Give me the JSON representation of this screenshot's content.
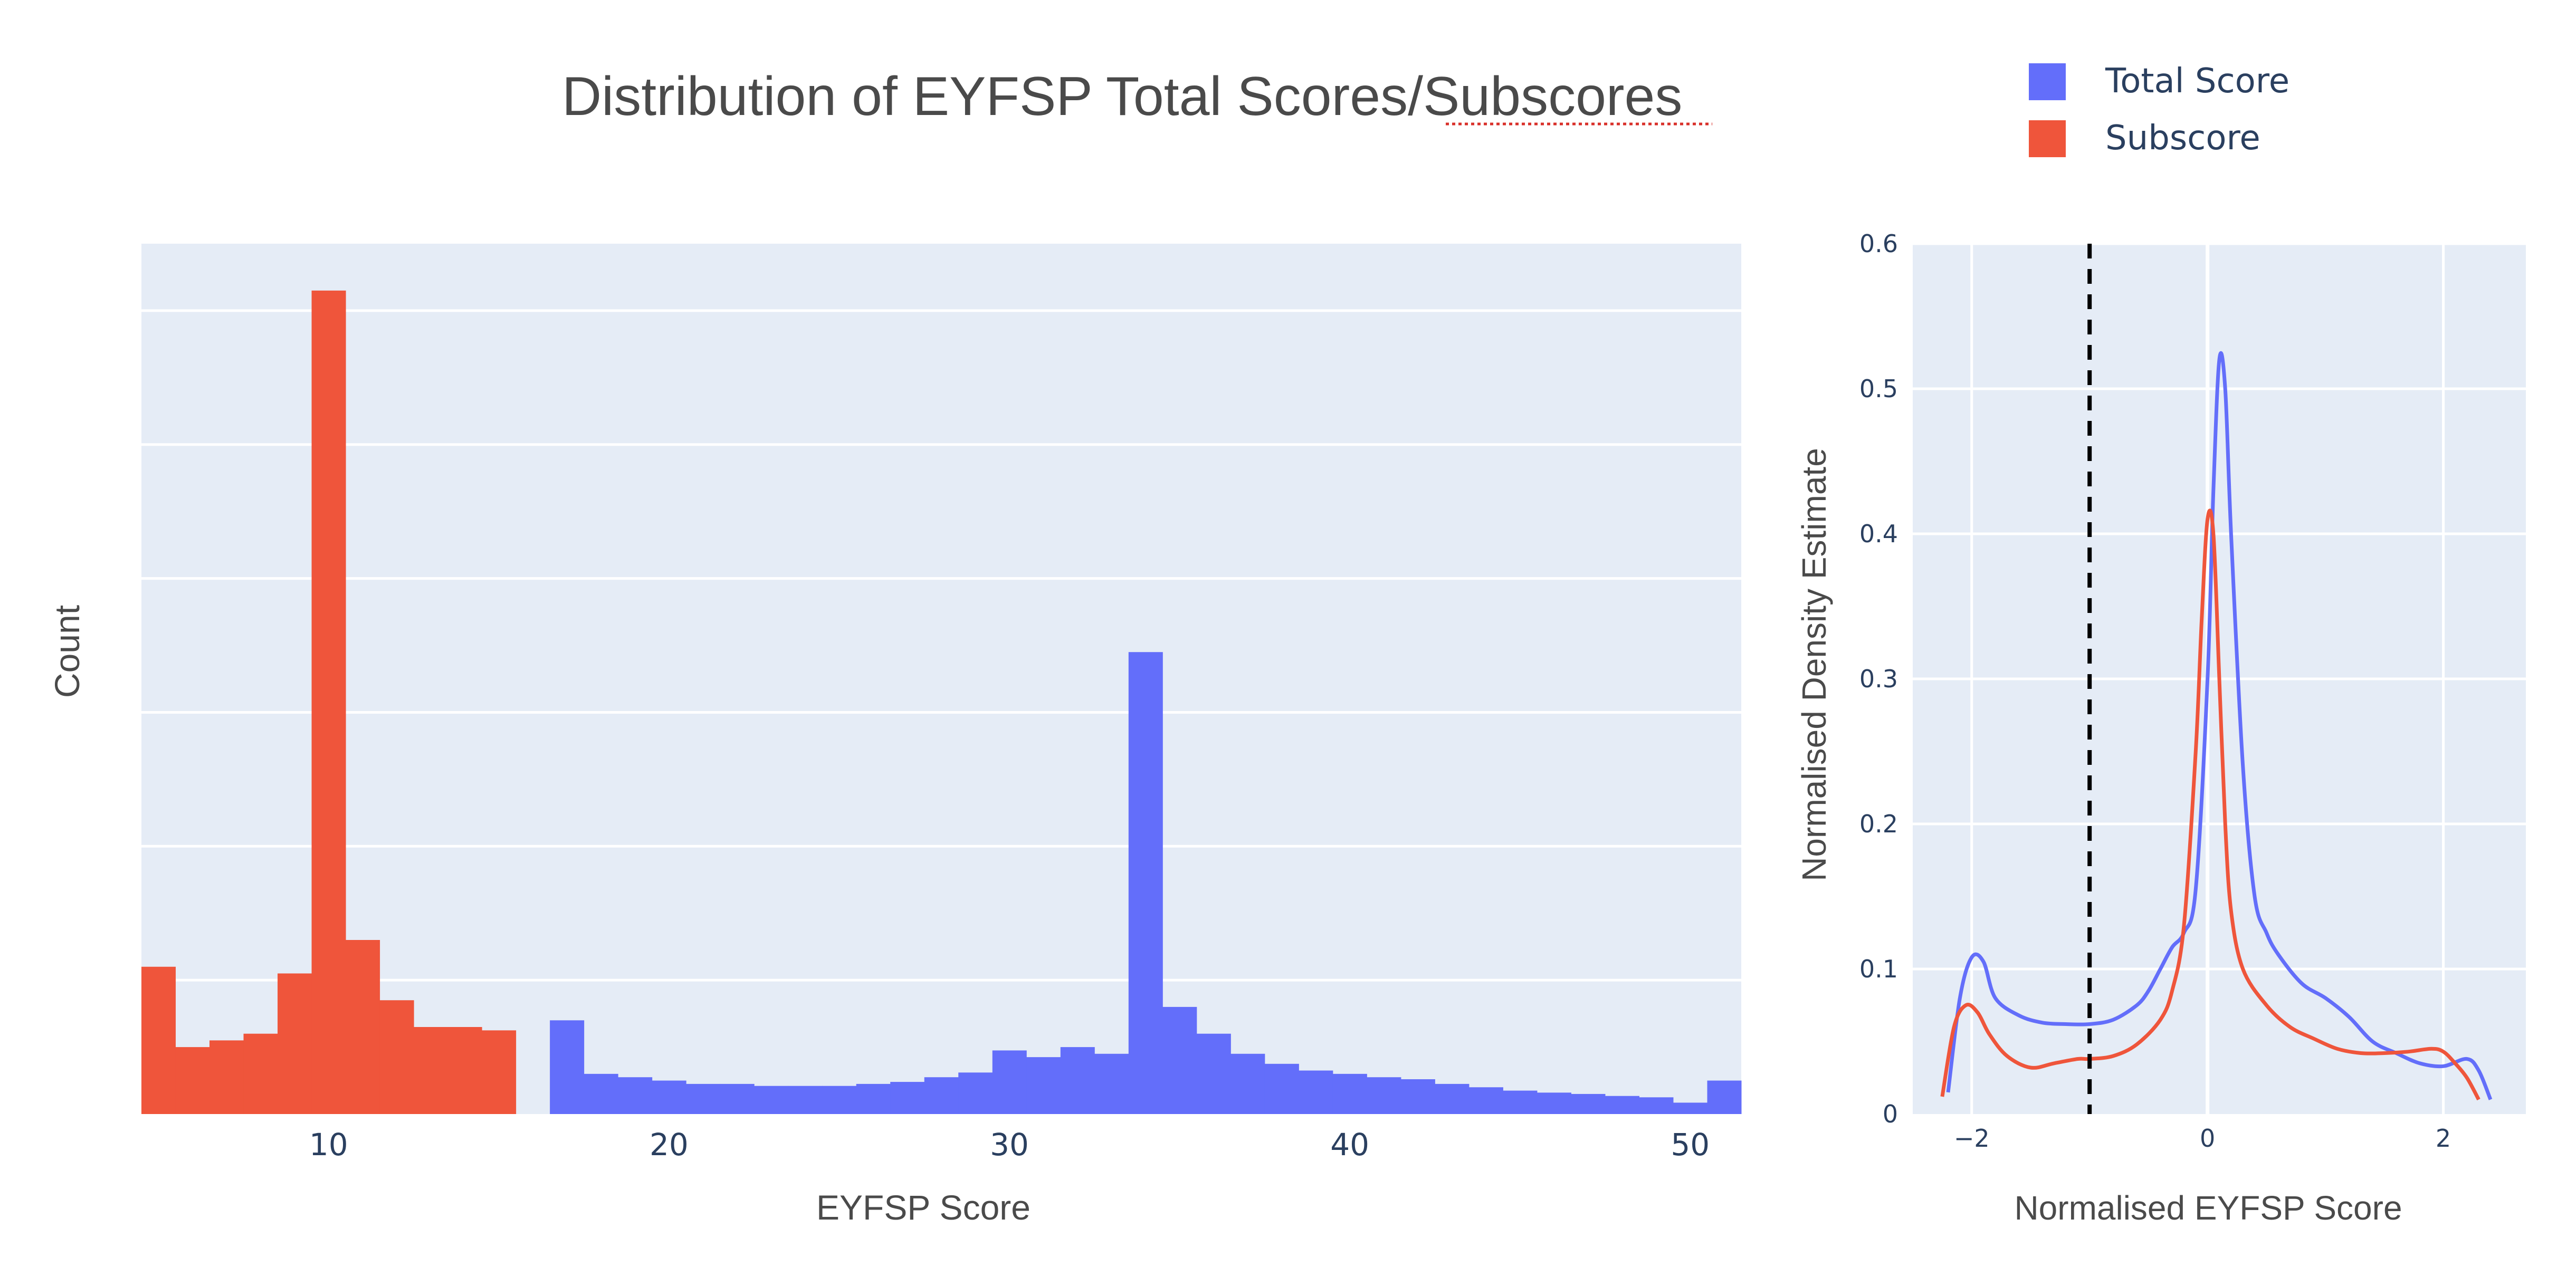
{
  "title": {
    "prefix": "Distribution of EYFSP Total Scores/",
    "underlined": "Subscores"
  },
  "legend": {
    "placement": "top-right",
    "items": [
      {
        "label": "Total Score",
        "color": "#636EFA"
      },
      {
        "label": "Subscore",
        "color": "#EF553B"
      }
    ]
  },
  "chart_data": [
    {
      "type": "bar",
      "subtype": "histogram",
      "xlabel": "EYFSP Score",
      "ylabel": "Count",
      "xlim": [
        4.5,
        51.5
      ],
      "ylim": [
        0,
        130
      ],
      "xticks": [
        10,
        20,
        30,
        40,
        50
      ],
      "xtick_labels": [
        "10",
        "20",
        "30",
        "40",
        "50"
      ],
      "y_gridlines": [
        20,
        40,
        60,
        80,
        100,
        120
      ],
      "y_tick_labels_shown": false,
      "bin_width": 1,
      "series": [
        {
          "name": "Subscore",
          "color": "#EF553B",
          "bin_centers": [
            5,
            6,
            7,
            8,
            9,
            10,
            11,
            12,
            13,
            14,
            15
          ],
          "values": [
            22,
            10,
            11,
            12,
            21,
            123,
            26,
            17,
            13,
            13,
            12.5
          ]
        },
        {
          "name": "Total Score",
          "color": "#636EFA",
          "bin_centers": [
            17,
            18,
            19,
            20,
            21,
            22,
            23,
            24,
            25,
            26,
            27,
            28,
            29,
            30,
            31,
            32,
            33,
            34,
            35,
            36,
            37,
            38,
            39,
            40,
            41,
            42,
            43,
            44,
            45,
            46,
            47,
            48,
            49,
            50,
            51
          ],
          "values": [
            14,
            6,
            5.5,
            5,
            4.5,
            4.5,
            4.2,
            4.2,
            4.2,
            4.5,
            4.8,
            5.5,
            6.2,
            9.5,
            8.5,
            10,
            9,
            69,
            16,
            12,
            9,
            7.5,
            6.5,
            6,
            5.5,
            5.2,
            4.5,
            4,
            3.5,
            3.2,
            3,
            2.7,
            2.5,
            1.7,
            5
          ]
        }
      ]
    },
    {
      "type": "line",
      "subtype": "density",
      "xlabel": "Normalised EYFSP Score",
      "ylabel": "Normalised Density Estimate",
      "xlim": [
        -2.5,
        2.7
      ],
      "ylim": [
        0,
        0.6
      ],
      "xticks": [
        -2,
        0,
        2
      ],
      "xtick_labels": [
        "−2",
        "0",
        "2"
      ],
      "yticks": [
        0,
        0.1,
        0.2,
        0.3,
        0.4,
        0.5,
        0.6
      ],
      "ytick_labels": [
        "0",
        "0.1",
        "0.2",
        "0.3",
        "0.4",
        "0.5",
        "0.6"
      ],
      "grid": true,
      "vline": {
        "x": -1,
        "style": "dashed",
        "color": "#000000"
      },
      "series": [
        {
          "name": "Total Score",
          "color": "#636EFA",
          "x": [
            -2.2,
            -2.1,
            -2.0,
            -1.9,
            -1.8,
            -1.6,
            -1.4,
            -1.2,
            -1.0,
            -0.8,
            -0.6,
            -0.5,
            -0.4,
            -0.3,
            -0.2,
            -0.1,
            0.0,
            0.05,
            0.1,
            0.15,
            0.2,
            0.3,
            0.4,
            0.5,
            0.6,
            0.8,
            1.0,
            1.2,
            1.4,
            1.6,
            1.8,
            2.0,
            2.2,
            2.3,
            2.4
          ],
          "y": [
            0.015,
            0.08,
            0.108,
            0.105,
            0.08,
            0.068,
            0.063,
            0.062,
            0.062,
            0.065,
            0.075,
            0.085,
            0.1,
            0.115,
            0.125,
            0.155,
            0.3,
            0.43,
            0.52,
            0.5,
            0.4,
            0.24,
            0.15,
            0.125,
            0.11,
            0.09,
            0.08,
            0.067,
            0.05,
            0.042,
            0.035,
            0.033,
            0.038,
            0.03,
            0.01
          ]
        },
        {
          "name": "Subscore",
          "color": "#EF553B",
          "x": [
            -2.25,
            -2.15,
            -2.05,
            -1.95,
            -1.85,
            -1.7,
            -1.5,
            -1.3,
            -1.1,
            -1.0,
            -0.8,
            -0.6,
            -0.4,
            -0.3,
            -0.2,
            -0.1,
            -0.05,
            0.0,
            0.05,
            0.1,
            0.15,
            0.2,
            0.3,
            0.5,
            0.7,
            0.9,
            1.1,
            1.3,
            1.5,
            1.7,
            1.9,
            2.0,
            2.1,
            2.2,
            2.3
          ],
          "y": [
            0.012,
            0.06,
            0.075,
            0.07,
            0.055,
            0.04,
            0.032,
            0.035,
            0.038,
            0.038,
            0.04,
            0.048,
            0.065,
            0.085,
            0.13,
            0.25,
            0.34,
            0.41,
            0.4,
            0.3,
            0.2,
            0.14,
            0.1,
            0.075,
            0.06,
            0.052,
            0.045,
            0.042,
            0.042,
            0.043,
            0.045,
            0.043,
            0.035,
            0.025,
            0.01
          ]
        }
      ]
    }
  ]
}
